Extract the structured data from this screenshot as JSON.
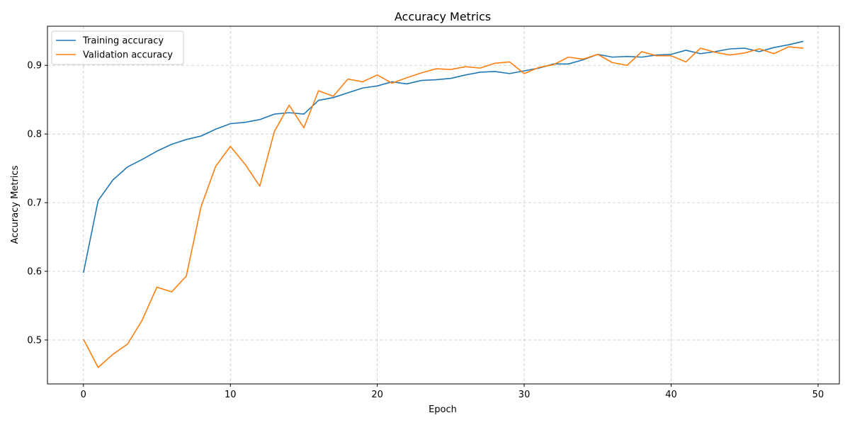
{
  "chart_data": {
    "type": "line",
    "title": "Accuracy Metrics",
    "xlabel": "Epoch",
    "ylabel": "Accuracy Metrics",
    "xlim": [
      -2.45,
      51.45
    ],
    "ylim": [
      0.436,
      0.957
    ],
    "xticks": [
      0,
      10,
      20,
      30,
      40,
      50
    ],
    "yticks": [
      0.5,
      0.6,
      0.7,
      0.8,
      0.9
    ],
    "grid": true,
    "legend_position": "top-left",
    "x": [
      0,
      1,
      2,
      3,
      4,
      5,
      6,
      7,
      8,
      9,
      10,
      11,
      12,
      13,
      14,
      15,
      16,
      17,
      18,
      19,
      20,
      21,
      22,
      23,
      24,
      25,
      26,
      27,
      28,
      29,
      30,
      31,
      32,
      33,
      34,
      35,
      36,
      37,
      38,
      39,
      40,
      41,
      42,
      43,
      44,
      45,
      46,
      47,
      48,
      49
    ],
    "series": [
      {
        "name": "Training accuracy",
        "color": "#1f77b4",
        "values": [
          0.598,
          0.703,
          0.733,
          0.752,
          0.763,
          0.775,
          0.785,
          0.792,
          0.797,
          0.807,
          0.815,
          0.817,
          0.821,
          0.829,
          0.831,
          0.829,
          0.849,
          0.853,
          0.86,
          0.867,
          0.87,
          0.876,
          0.873,
          0.878,
          0.879,
          0.881,
          0.886,
          0.89,
          0.891,
          0.888,
          0.892,
          0.896,
          0.902,
          0.902,
          0.908,
          0.916,
          0.912,
          0.913,
          0.912,
          0.915,
          0.916,
          0.922,
          0.917,
          0.92,
          0.924,
          0.925,
          0.92,
          0.926,
          0.93,
          0.935
        ]
      },
      {
        "name": "Validation accuracy",
        "color": "#ff7f0e",
        "values": [
          0.501,
          0.46,
          0.479,
          0.494,
          0.529,
          0.577,
          0.57,
          0.593,
          0.694,
          0.753,
          0.782,
          0.756,
          0.724,
          0.804,
          0.842,
          0.809,
          0.863,
          0.855,
          0.88,
          0.876,
          0.886,
          0.874,
          0.882,
          0.889,
          0.895,
          0.894,
          0.898,
          0.896,
          0.903,
          0.905,
          0.888,
          0.897,
          0.901,
          0.912,
          0.909,
          0.916,
          0.904,
          0.9,
          0.92,
          0.914,
          0.914,
          0.905,
          0.925,
          0.919,
          0.915,
          0.918,
          0.924,
          0.917,
          0.927,
          0.925
        ]
      }
    ]
  }
}
